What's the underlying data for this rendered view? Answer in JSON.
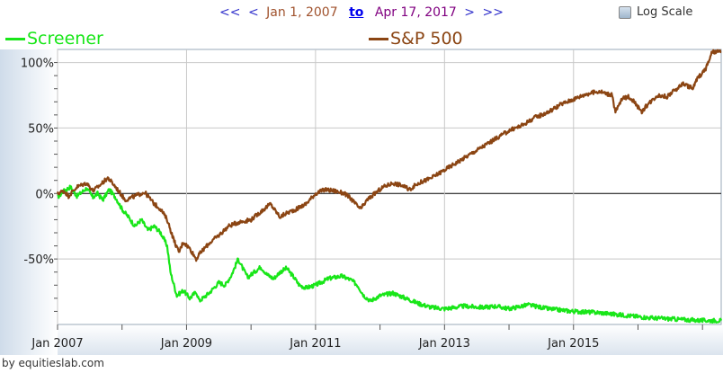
{
  "nav": {
    "prev_far": "<<",
    "prev": "<",
    "start_date": "Jan 1, 2007",
    "to": "to",
    "end_date": "Apr 17, 2017",
    "next": ">",
    "next_far": ">>"
  },
  "log_scale_label": "Log Scale",
  "credit": "by equitieslab.com",
  "colors": {
    "screener": "#19e619",
    "sp500": "#8b4513",
    "zero_line": "#000000"
  },
  "chart_data": {
    "type": "line",
    "title": "",
    "xlabel": "",
    "ylabel": "",
    "x_ticks": [
      {
        "label": "Jan 2007",
        "t": 2007.0
      },
      {
        "label": "Jan 2009",
        "t": 2009.0
      },
      {
        "label": "Jan 2011",
        "t": 2011.0
      },
      {
        "label": "Jan 2013",
        "t": 2013.0
      },
      {
        "label": "Jan 2015",
        "t": 2015.0
      }
    ],
    "y_ticks": [
      {
        "label": "100%",
        "v": 100
      },
      {
        "label": "50%",
        "v": 50
      },
      {
        "label": "0%",
        "v": 0
      },
      {
        "label": "-50%",
        "v": -50
      }
    ],
    "xlim": [
      2007.0,
      2017.29
    ],
    "ylim": [
      -100,
      110
    ],
    "grid": true,
    "legend_position": "top",
    "series": [
      {
        "name": "Screener",
        "color": "#19e619",
        "points": [
          [
            2007.0,
            -3
          ],
          [
            2007.1,
            2
          ],
          [
            2007.2,
            5
          ],
          [
            2007.3,
            -2
          ],
          [
            2007.45,
            4
          ],
          [
            2007.55,
            -3
          ],
          [
            2007.62,
            0
          ],
          [
            2007.7,
            -5
          ],
          [
            2007.8,
            3
          ],
          [
            2007.9,
            -3
          ],
          [
            2008.0,
            -12
          ],
          [
            2008.1,
            -18
          ],
          [
            2008.2,
            -25
          ],
          [
            2008.3,
            -20
          ],
          [
            2008.4,
            -28
          ],
          [
            2008.5,
            -25
          ],
          [
            2008.6,
            -30
          ],
          [
            2008.7,
            -40
          ],
          [
            2008.75,
            -60
          ],
          [
            2008.85,
            -78
          ],
          [
            2008.95,
            -74
          ],
          [
            2009.05,
            -80
          ],
          [
            2009.15,
            -75
          ],
          [
            2009.2,
            -82
          ],
          [
            2009.35,
            -76
          ],
          [
            2009.5,
            -68
          ],
          [
            2009.6,
            -70
          ],
          [
            2009.7,
            -62
          ],
          [
            2009.8,
            -50
          ],
          [
            2009.88,
            -58
          ],
          [
            2009.95,
            -64
          ],
          [
            2010.05,
            -60
          ],
          [
            2010.15,
            -56
          ],
          [
            2010.25,
            -62
          ],
          [
            2010.35,
            -65
          ],
          [
            2010.45,
            -60
          ],
          [
            2010.55,
            -57
          ],
          [
            2010.65,
            -63
          ],
          [
            2010.75,
            -70
          ],
          [
            2010.85,
            -72
          ],
          [
            2011.0,
            -70
          ],
          [
            2011.2,
            -65
          ],
          [
            2011.4,
            -63
          ],
          [
            2011.55,
            -66
          ],
          [
            2011.65,
            -70
          ],
          [
            2011.75,
            -78
          ],
          [
            2011.85,
            -82
          ],
          [
            2012.0,
            -78
          ],
          [
            2012.2,
            -76
          ],
          [
            2012.4,
            -80
          ],
          [
            2012.6,
            -84
          ],
          [
            2012.8,
            -87
          ],
          [
            2013.0,
            -88
          ],
          [
            2013.3,
            -86
          ],
          [
            2013.6,
            -87
          ],
          [
            2013.8,
            -86
          ],
          [
            2014.0,
            -88
          ],
          [
            2014.3,
            -85
          ],
          [
            2014.6,
            -88
          ],
          [
            2015.0,
            -90
          ],
          [
            2015.4,
            -91
          ],
          [
            2015.8,
            -93
          ],
          [
            2016.2,
            -95
          ],
          [
            2016.6,
            -96
          ],
          [
            2017.0,
            -97
          ],
          [
            2017.29,
            -97
          ]
        ]
      },
      {
        "name": "S&P 500",
        "color": "#8b4513",
        "points": [
          [
            2007.0,
            0
          ],
          [
            2007.1,
            2
          ],
          [
            2007.17,
            -2
          ],
          [
            2007.3,
            5
          ],
          [
            2007.45,
            8
          ],
          [
            2007.55,
            2
          ],
          [
            2007.65,
            6
          ],
          [
            2007.78,
            12
          ],
          [
            2007.9,
            5
          ],
          [
            2008.05,
            -5
          ],
          [
            2008.2,
            -2
          ],
          [
            2008.35,
            1
          ],
          [
            2008.5,
            -8
          ],
          [
            2008.6,
            -12
          ],
          [
            2008.7,
            -20
          ],
          [
            2008.8,
            -35
          ],
          [
            2008.88,
            -45
          ],
          [
            2008.95,
            -37
          ],
          [
            2009.05,
            -42
          ],
          [
            2009.15,
            -50
          ],
          [
            2009.22,
            -45
          ],
          [
            2009.35,
            -38
          ],
          [
            2009.5,
            -32
          ],
          [
            2009.65,
            -25
          ],
          [
            2009.8,
            -22
          ],
          [
            2010.0,
            -20
          ],
          [
            2010.2,
            -12
          ],
          [
            2010.3,
            -8
          ],
          [
            2010.45,
            -18
          ],
          [
            2010.55,
            -15
          ],
          [
            2010.7,
            -12
          ],
          [
            2010.85,
            -8
          ],
          [
            2011.0,
            0
          ],
          [
            2011.15,
            3
          ],
          [
            2011.3,
            2
          ],
          [
            2011.45,
            0
          ],
          [
            2011.55,
            -4
          ],
          [
            2011.62,
            -8
          ],
          [
            2011.7,
            -12
          ],
          [
            2011.8,
            -5
          ],
          [
            2011.92,
            0
          ],
          [
            2012.05,
            5
          ],
          [
            2012.2,
            8
          ],
          [
            2012.35,
            6
          ],
          [
            2012.45,
            3
          ],
          [
            2012.6,
            8
          ],
          [
            2012.8,
            12
          ],
          [
            2013.0,
            18
          ],
          [
            2013.2,
            24
          ],
          [
            2013.4,
            30
          ],
          [
            2013.6,
            36
          ],
          [
            2013.8,
            42
          ],
          [
            2014.0,
            48
          ],
          [
            2014.2,
            52
          ],
          [
            2014.4,
            58
          ],
          [
            2014.6,
            62
          ],
          [
            2014.8,
            68
          ],
          [
            2015.0,
            72
          ],
          [
            2015.2,
            76
          ],
          [
            2015.4,
            78
          ],
          [
            2015.6,
            75
          ],
          [
            2015.65,
            62
          ],
          [
            2015.75,
            72
          ],
          [
            2015.85,
            74
          ],
          [
            2015.95,
            70
          ],
          [
            2016.05,
            62
          ],
          [
            2016.15,
            68
          ],
          [
            2016.3,
            75
          ],
          [
            2016.45,
            74
          ],
          [
            2016.55,
            78
          ],
          [
            2016.7,
            84
          ],
          [
            2016.85,
            80
          ],
          [
            2016.92,
            88
          ],
          [
            2017.05,
            95
          ],
          [
            2017.15,
            108
          ],
          [
            2017.29,
            108
          ]
        ]
      }
    ]
  }
}
